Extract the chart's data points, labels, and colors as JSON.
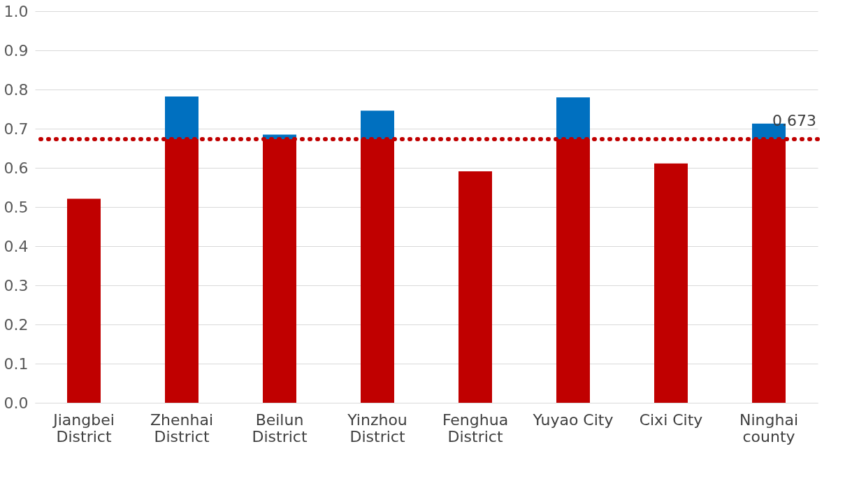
{
  "chart_data": {
    "type": "bar",
    "stacked": true,
    "categories": [
      "Jiangbei District",
      "Zhenhai District",
      "Beilun District",
      "Yinzhou District",
      "Fenghua District",
      "Yuyao City",
      "Cixi City",
      "Ninghai county"
    ],
    "series": [
      {
        "color": "#c00000",
        "values": [
          0.521,
          0.673,
          0.673,
          0.673,
          0.591,
          0.673,
          0.611,
          0.673
        ]
      },
      {
        "color": "#0070c0",
        "values": [
          null,
          0.109,
          0.012,
          0.073,
          null,
          0.107,
          null,
          0.04
        ]
      }
    ],
    "ylim": [
      0,
      1
    ],
    "yticks": [
      {
        "value": 0,
        "label": "0.0"
      },
      {
        "value": 0.1,
        "label": "0.1"
      },
      {
        "value": 0.2,
        "label": "0.2"
      },
      {
        "value": 0.3,
        "label": "0.3"
      },
      {
        "value": 0.4,
        "label": "0.4"
      },
      {
        "value": 0.5,
        "label": "0.5"
      },
      {
        "value": 0.6,
        "label": "0.6"
      },
      {
        "value": 0.7,
        "label": "0.7"
      },
      {
        "value": 0.8,
        "label": "0.8"
      },
      {
        "value": 0.9,
        "label": "0.9"
      },
      {
        "value": 1,
        "label": "1.0"
      }
    ],
    "grid": "y",
    "ref_lines": [
      {
        "axis": "y",
        "value": 0.673,
        "label": "0.673",
        "color": "#c00000",
        "line_style": "dotted"
      }
    ]
  }
}
